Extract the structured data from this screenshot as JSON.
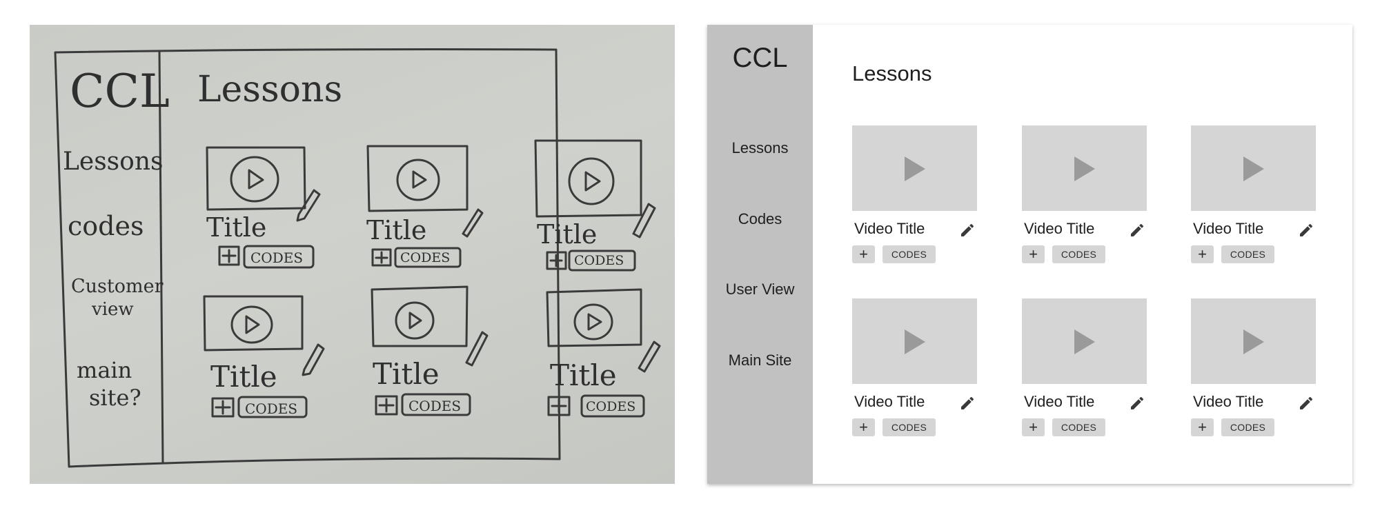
{
  "sketch": {
    "logo": "CCL",
    "heading": "Lessons",
    "nav": [
      "Lessons",
      "codes",
      "Customer",
      "view",
      "main",
      "site?"
    ],
    "card_title": "Title",
    "plus_label": "+",
    "codes_label": "CODES"
  },
  "wireframe": {
    "logo": "CCL",
    "title": "Lessons",
    "nav": [
      "Lessons",
      "Codes",
      "User View",
      "Main Site"
    ],
    "videos": [
      {
        "title": "Video Title",
        "plus": "+",
        "codes": "CODES"
      },
      {
        "title": "Video Title",
        "plus": "+",
        "codes": "CODES"
      },
      {
        "title": "Video Title",
        "plus": "+",
        "codes": "CODES"
      },
      {
        "title": "Video Title",
        "plus": "+",
        "codes": "CODES"
      },
      {
        "title": "Video Title",
        "plus": "+",
        "codes": "CODES"
      },
      {
        "title": "Video Title",
        "plus": "+",
        "codes": "CODES"
      }
    ],
    "icons": {
      "play": "play-icon",
      "edit": "pencil-icon"
    },
    "colors": {
      "sidebar": "#c1c1c1",
      "thumbnail": "#d5d5d5",
      "play": "#9a9a9a",
      "button": "#d5d5d5",
      "text": "#1e1e1e"
    }
  }
}
